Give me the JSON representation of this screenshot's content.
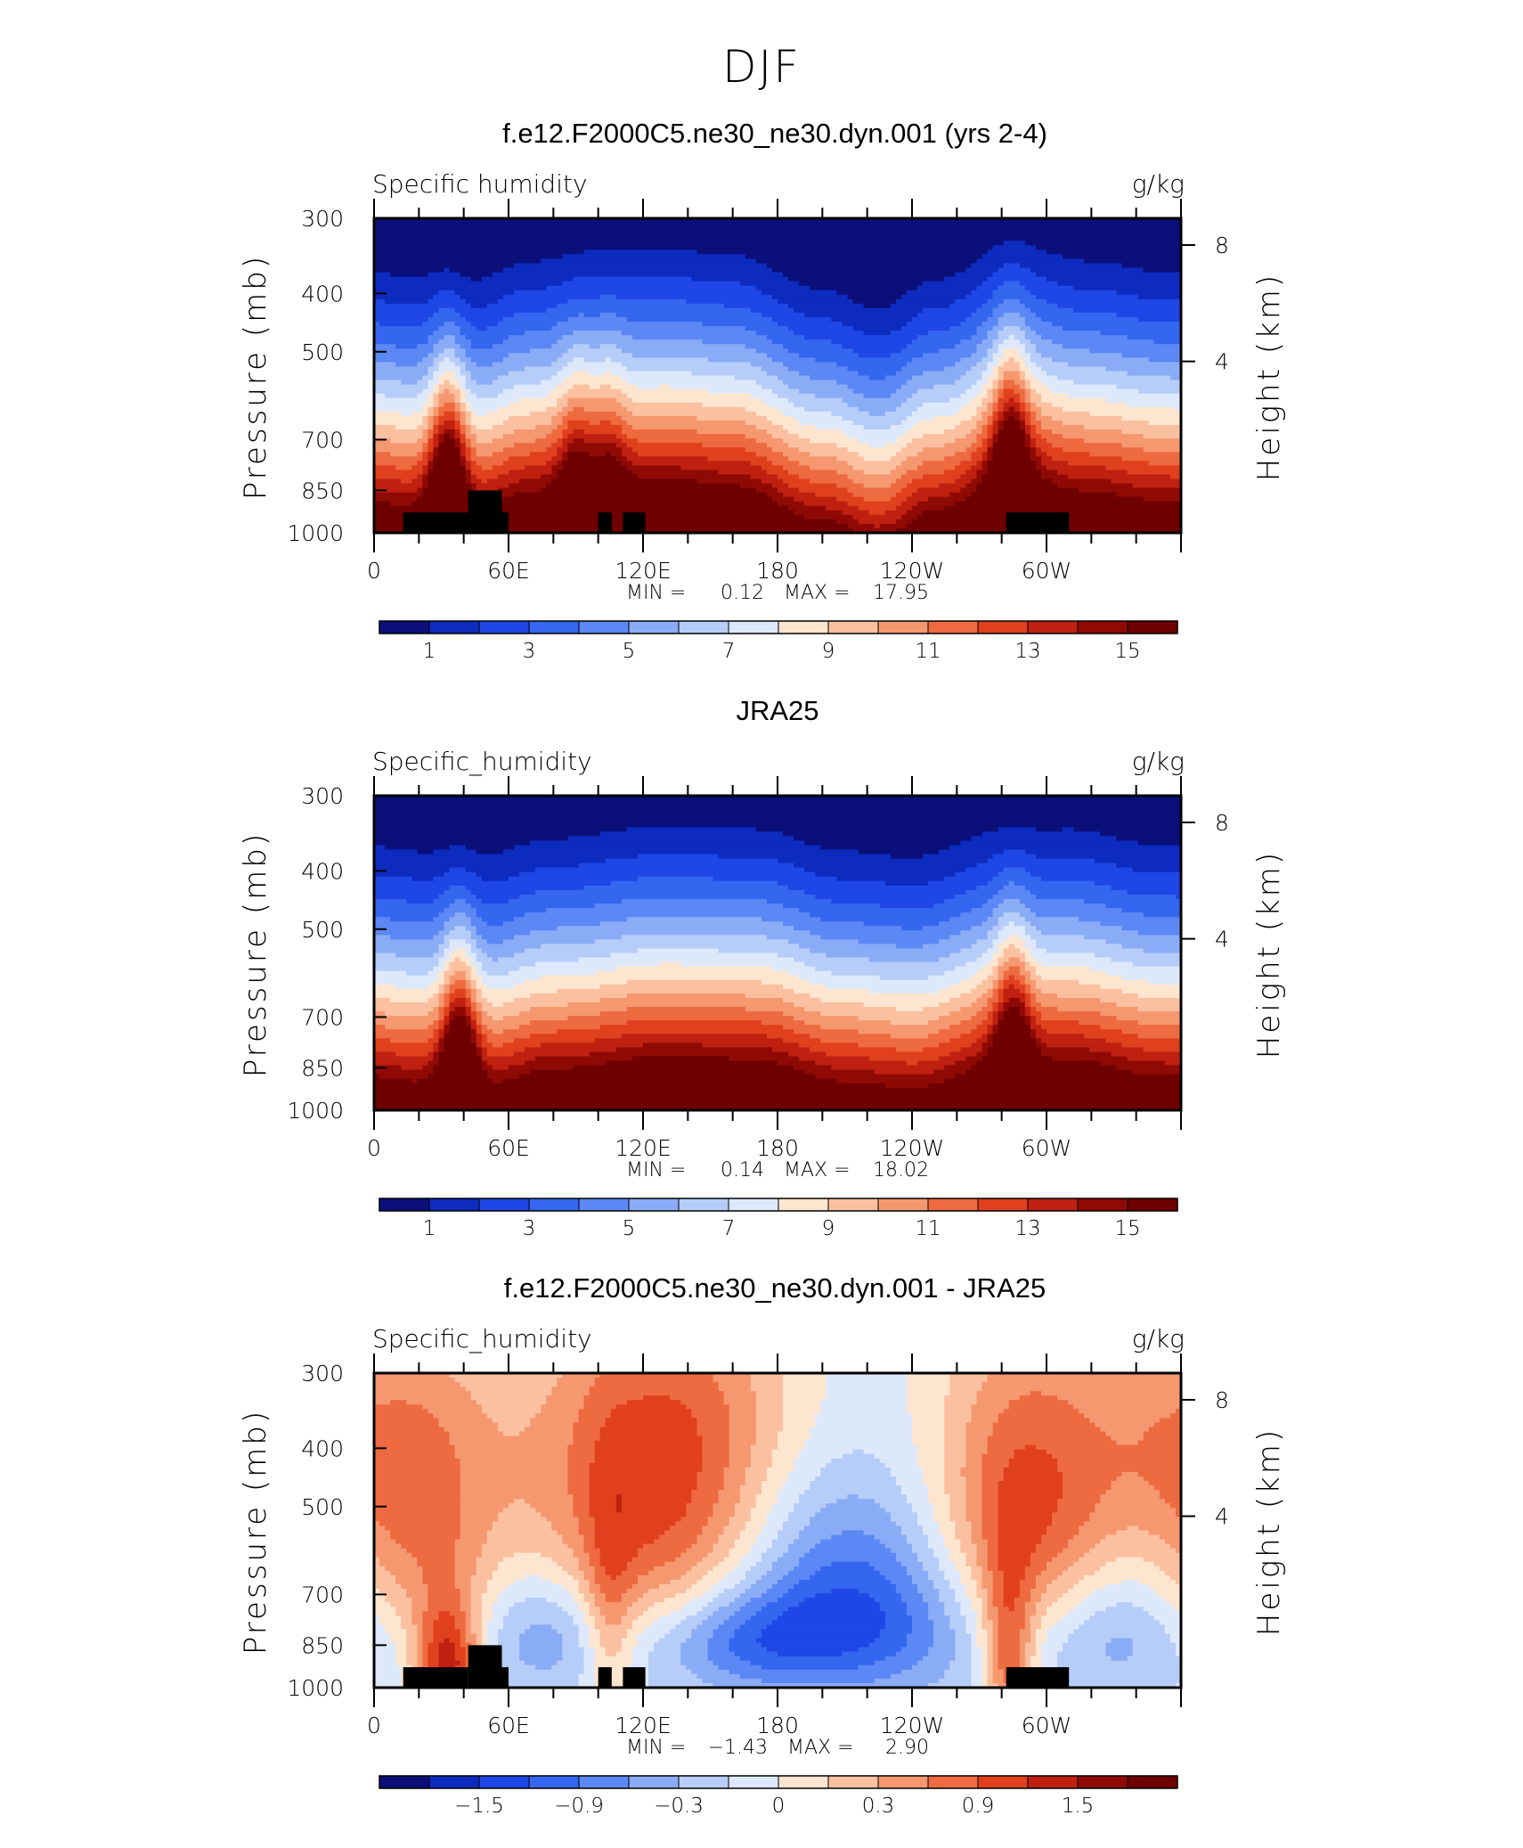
{
  "figure_title": "DJF",
  "chart_data": [
    {
      "type": "heatmap",
      "title": "f.e12.F2000C5.ne30_ne30.dyn.001 (yrs 2-4)",
      "variable": "Specific humidity",
      "units": "g/kg",
      "ylabel": "Pressure (mb)",
      "ylabel_right": "Height (km)",
      "yticks": [
        "300",
        "400",
        "500",
        "700",
        "850",
        "1000"
      ],
      "yticks_right": [
        "8",
        "4"
      ],
      "xticks": [
        "0",
        "60E",
        "120E",
        "180",
        "120W",
        "60W"
      ],
      "min_label": "MIN =",
      "min_value": "0.12",
      "max_label": "MAX =",
      "max_value": "17.95",
      "colorbar_ticks": [
        "1",
        "3",
        "5",
        "7",
        "9",
        "11",
        "13",
        "15"
      ],
      "colorbar_colors": [
        "#0a0f7a",
        "#0d2bbf",
        "#1e47e6",
        "#3566f0",
        "#5b88f5",
        "#8aacf7",
        "#b7cdf9",
        "#dde9fb",
        "#fde5cf",
        "#fbc0a0",
        "#f59870",
        "#ee6a40",
        "#e0401d",
        "#bf2010",
        "#900a05",
        "#6e0000"
      ],
      "terrain_mask": true,
      "ridges": [
        {
          "lon": 33,
          "amp": 0.38
        },
        {
          "lon": 90,
          "amp": 0.16
        },
        {
          "lon": 105,
          "amp": 0.12
        },
        {
          "lon": 284,
          "amp": 0.33
        }
      ],
      "offsets": [
        {
          "lon": 40,
          "v": 0.07
        },
        {
          "lon": 70,
          "v": 0.0
        },
        {
          "lon": 110,
          "v": -0.03
        },
        {
          "lon": 130,
          "v": -0.04
        },
        {
          "lon": 160,
          "v": -0.02
        },
        {
          "lon": 200,
          "v": 0.09
        },
        {
          "lon": 225,
          "v": 0.15
        },
        {
          "lon": 250,
          "v": 0.06
        },
        {
          "lon": 285,
          "v": -0.05
        },
        {
          "lon": 320,
          "v": 0.0
        },
        {
          "lon": 350,
          "v": 0.03
        }
      ]
    },
    {
      "type": "heatmap",
      "title": "JRA25",
      "variable": "Specific_humidity",
      "units": "g/kg",
      "ylabel": "Pressure (mb)",
      "ylabel_right": "Height (km)",
      "yticks": [
        "300",
        "400",
        "500",
        "700",
        "850",
        "1000"
      ],
      "yticks_right": [
        "8",
        "4"
      ],
      "xticks": [
        "0",
        "60E",
        "120E",
        "180",
        "120W",
        "60W"
      ],
      "min_label": "MIN =",
      "min_value": "0.14",
      "max_label": "MAX =",
      "max_value": "18.02",
      "colorbar_ticks": [
        "1",
        "3",
        "5",
        "7",
        "9",
        "11",
        "13",
        "15"
      ],
      "colorbar_colors": [
        "#0a0f7a",
        "#0d2bbf",
        "#1e47e6",
        "#3566f0",
        "#5b88f5",
        "#8aacf7",
        "#b7cdf9",
        "#dde9fb",
        "#fde5cf",
        "#fbc0a0",
        "#f59870",
        "#ee6a40",
        "#e0401d",
        "#bf2010",
        "#900a05",
        "#6e0000"
      ],
      "terrain_mask": false,
      "ridges": [
        {
          "lon": 38,
          "amp": 0.35
        },
        {
          "lon": 285,
          "amp": 0.3
        }
      ],
      "offsets": [
        {
          "lon": 45,
          "v": 0.06
        },
        {
          "lon": 80,
          "v": 0.0
        },
        {
          "lon": 130,
          "v": -0.04
        },
        {
          "lon": 170,
          "v": -0.03
        },
        {
          "lon": 210,
          "v": 0.04
        },
        {
          "lon": 240,
          "v": 0.06
        },
        {
          "lon": 280,
          "v": -0.02
        },
        {
          "lon": 310,
          "v": -0.03
        },
        {
          "lon": 350,
          "v": 0.02
        }
      ]
    },
    {
      "type": "heatmap",
      "title": "f.e12.F2000C5.ne30_ne30.dyn.001 - JRA25",
      "variable": "Specific_humidity",
      "units": "g/kg",
      "ylabel": "Pressure (mb)",
      "ylabel_right": "Height (km)",
      "yticks": [
        "300",
        "400",
        "500",
        "700",
        "850",
        "1000"
      ],
      "yticks_right": [
        "8",
        "4"
      ],
      "xticks": [
        "0",
        "60E",
        "120E",
        "180",
        "120W",
        "60W"
      ],
      "min_label": "MIN =",
      "min_value": "−1.43",
      "max_label": "MAX =",
      "max_value": "2.90",
      "colorbar_ticks": [
        "−1.5",
        "−0.9",
        "−0.3",
        "0",
        "0.3",
        "0.9",
        "1.5"
      ],
      "colorbar_colors": [
        "#0a0f7a",
        "#0d2bbf",
        "#1e47e6",
        "#3566f0",
        "#5b88f5",
        "#8aacf7",
        "#b7cdf9",
        "#dde9fb",
        "#fde5cf",
        "#fbc0a0",
        "#f59870",
        "#ee6a40",
        "#e0401d",
        "#bf2010",
        "#900a05",
        "#6e0000"
      ],
      "terrain_mask": true,
      "blobs": [
        {
          "lon": 215,
          "p": 760,
          "w": 42,
          "h": 170,
          "a": -1.3
        },
        {
          "lon": 165,
          "p": 830,
          "w": 30,
          "h": 110,
          "a": -0.8
        },
        {
          "lon": 75,
          "p": 790,
          "w": 22,
          "h": 140,
          "a": -0.75
        },
        {
          "lon": 330,
          "p": 800,
          "w": 28,
          "h": 140,
          "a": -0.7
        },
        {
          "lon": 198,
          "p": 470,
          "w": 30,
          "h": 150,
          "a": -0.35
        },
        {
          "lon": 125,
          "p": 520,
          "w": 42,
          "h": 210,
          "a": 1.6
        },
        {
          "lon": 20,
          "p": 560,
          "w": 28,
          "h": 230,
          "a": 1.1
        },
        {
          "lon": 290,
          "p": 540,
          "w": 30,
          "h": 230,
          "a": 1.6
        },
        {
          "lon": 283,
          "p": 900,
          "w": 8,
          "h": 200,
          "a": 1.3
        },
        {
          "lon": 33,
          "p": 930,
          "w": 10,
          "h": 150,
          "a": 1.8
        },
        {
          "lon": 105,
          "p": 800,
          "w": 8,
          "h": 220,
          "a": 0.7
        },
        {
          "lon": 150,
          "p": 330,
          "w": 60,
          "h": 110,
          "a": 0.5
        },
        {
          "lon": 350,
          "p": 380,
          "w": 35,
          "h": 120,
          "a": 0.6
        }
      ]
    }
  ]
}
